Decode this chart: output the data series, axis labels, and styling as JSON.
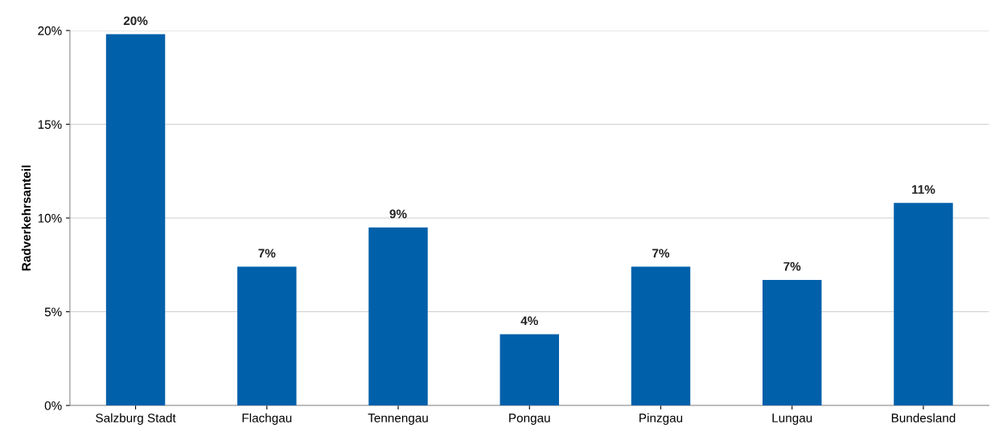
{
  "chart_data": {
    "type": "bar",
    "ylabel": "Radverkehrsanteil",
    "categories": [
      "Salzburg Stadt",
      "Flachgau",
      "Tennengau",
      "Pongau",
      "Pinzgau",
      "Lungau",
      "Bundesland"
    ],
    "values": [
      19.8,
      7.4,
      9.5,
      3.8,
      7.4,
      6.7,
      10.8
    ],
    "value_labels": [
      "20%",
      "7%",
      "9%",
      "4%",
      "7%",
      "7%",
      "11%"
    ],
    "color": "#0060aa",
    "ylim": [
      0,
      20
    ],
    "yticks": [
      {
        "value": 0,
        "label": "0%"
      },
      {
        "value": 5,
        "label": "5%"
      },
      {
        "value": 10,
        "label": "10%"
      },
      {
        "value": 15,
        "label": "15%"
      },
      {
        "value": 20,
        "label": "20%"
      }
    ],
    "grid": "y"
  }
}
